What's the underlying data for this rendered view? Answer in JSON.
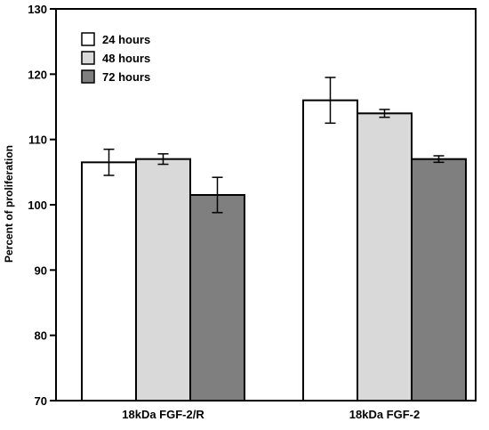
{
  "chart_data": {
    "type": "bar",
    "title": "",
    "xlabel": "",
    "ylabel": "Percent of proliferation",
    "ylim": [
      70,
      130
    ],
    "yticks": [
      70,
      80,
      90,
      100,
      110,
      120,
      130
    ],
    "categories": [
      "18kDa FGF-2/R",
      "18kDa FGF-2"
    ],
    "series": [
      {
        "name": "24 hours",
        "color": "#ffffff",
        "values": [
          106.5,
          116.0
        ],
        "errors": [
          2.0,
          3.5
        ]
      },
      {
        "name": "48 hours",
        "color": "#d9d9d9",
        "values": [
          107.0,
          114.0
        ],
        "errors": [
          0.8,
          0.6
        ]
      },
      {
        "name": "72 hours",
        "color": "#7f7f7f",
        "values": [
          101.5,
          107.0
        ],
        "errors": [
          2.7,
          0.5
        ]
      }
    ],
    "legend_position": "top-left",
    "grid": false
  }
}
